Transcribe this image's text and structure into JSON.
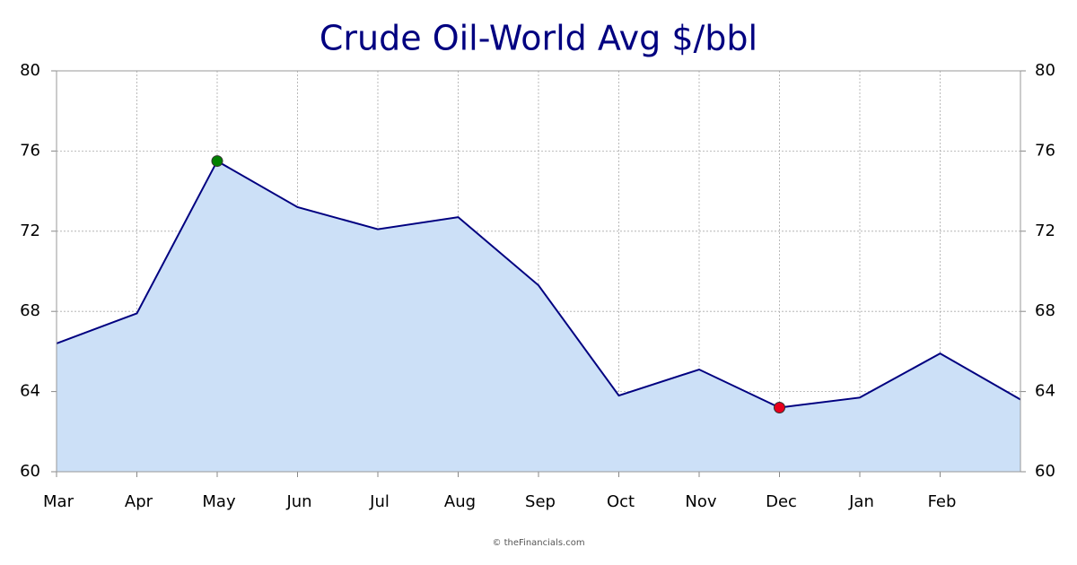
{
  "chart_data": {
    "type": "area",
    "title": "Crude Oil-World Avg $/bbl",
    "categories": [
      "Mar",
      "Apr",
      "May",
      "Jun",
      "Jul",
      "Aug",
      "Sep",
      "Oct",
      "Nov",
      "Dec",
      "Jan",
      "Feb",
      null
    ],
    "series": [
      {
        "name": "Crude Oil-World Avg",
        "color": "#000080",
        "fill": "#cce0f7",
        "values": [
          66.4,
          67.9,
          75.5,
          73.2,
          72.1,
          72.7,
          69.3,
          63.8,
          65.1,
          63.2,
          63.7,
          65.9,
          63.6
        ]
      }
    ],
    "ylim": [
      60,
      80
    ],
    "yticks": [
      60,
      64,
      68,
      72,
      76,
      80
    ],
    "y2lim": [
      60,
      80
    ],
    "y2ticks": [
      60,
      64,
      68,
      72,
      76,
      80
    ],
    "grid": true,
    "max_marker_color": "#008000",
    "min_marker_color": "#e8001c",
    "footer": "© theFinancials.com"
  }
}
